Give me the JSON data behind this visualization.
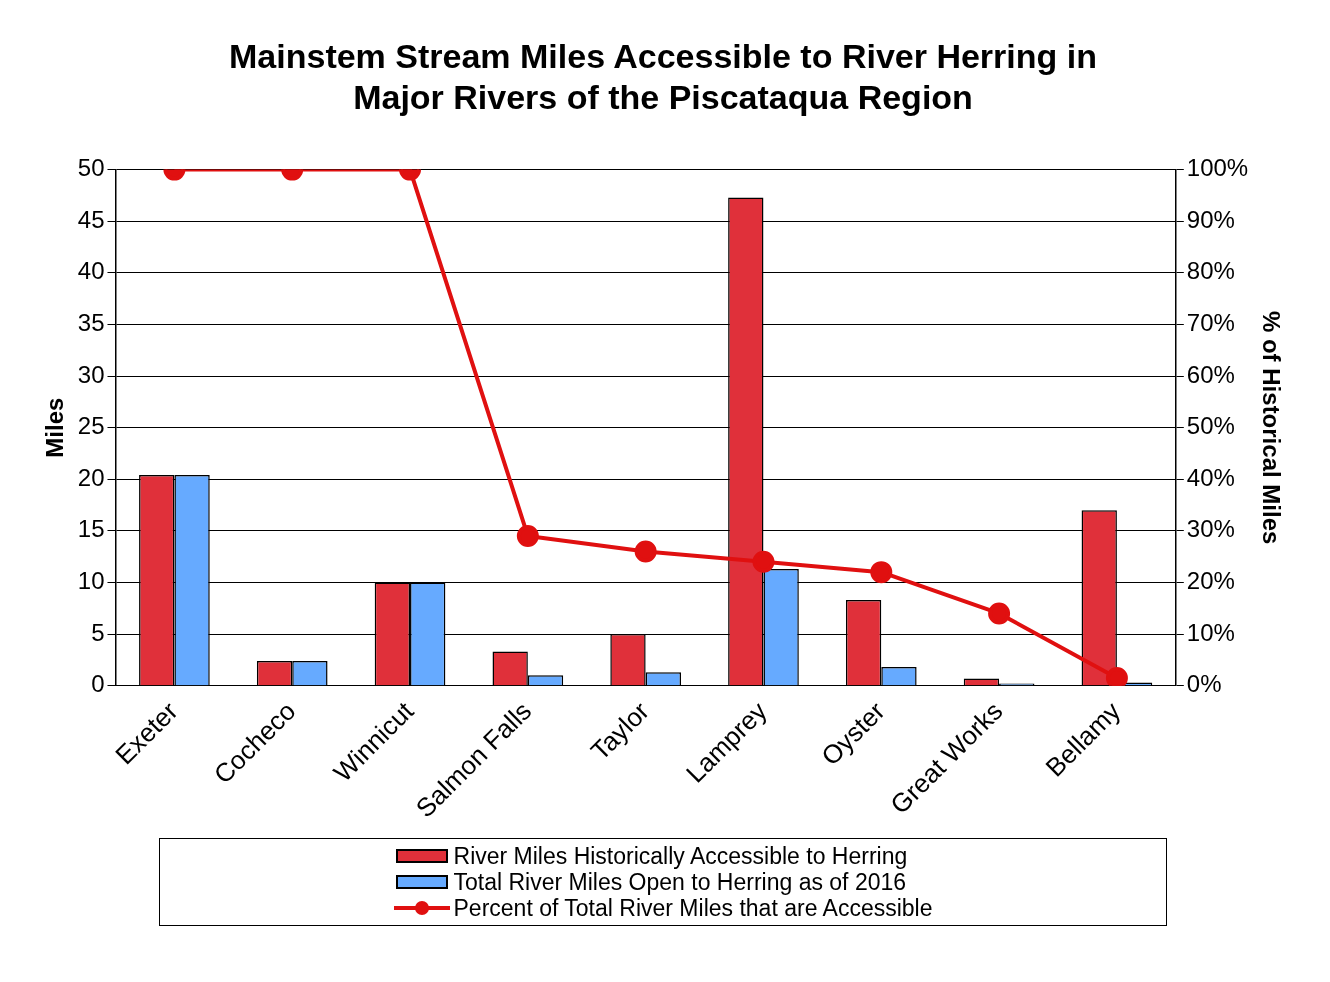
{
  "chart_data": {
    "type": "bar",
    "title": "Mainstem Stream Miles Accessible to River Herring in Major Rivers of the Piscataqua Region",
    "ylabel": "Miles",
    "y2label": "% of Historical Miles",
    "categories": [
      "Exeter",
      "Cocheco",
      "Winnicut",
      "Salmon Falls",
      "Taylor",
      "Lamprey",
      "Oyster",
      "Great Works",
      "Bellamy"
    ],
    "series": [
      {
        "name": "River Miles Historically Accessible to Herring",
        "color": "#e0303a",
        "values": [
          20.4,
          2.4,
          10,
          3.3,
          5,
          47.3,
          8.3,
          0.7,
          17
        ]
      },
      {
        "name": "Total River Miles Open to Herring as of 2016",
        "color": "#66aaff",
        "values": [
          20.4,
          2.4,
          10,
          1,
          1.3,
          11.3,
          1.8,
          0.2,
          0.3
        ]
      },
      {
        "name": "Percent of Total River Miles that are Accessible",
        "type": "line",
        "axis": "y2",
        "color": "#e01010",
        "marker": "circle",
        "values": [
          100,
          100,
          100,
          29,
          26,
          24,
          22,
          14,
          1.5
        ]
      }
    ],
    "ylim": [
      0,
      50
    ],
    "yticks": [
      0,
      5,
      10,
      15,
      20,
      25,
      30,
      35,
      40,
      45,
      50
    ],
    "y2lim": [
      0,
      100
    ],
    "y2ticks": [
      {
        "value": 0,
        "label": "0%"
      },
      {
        "value": 10,
        "label": "10%"
      },
      {
        "value": 20,
        "label": "20%"
      },
      {
        "value": 30,
        "label": "30%"
      },
      {
        "value": 40,
        "label": "40%"
      },
      {
        "value": 50,
        "label": "50%"
      },
      {
        "value": 60,
        "label": "60%"
      },
      {
        "value": 70,
        "label": "70%"
      },
      {
        "value": 80,
        "label": "80%"
      },
      {
        "value": 90,
        "label": "90%"
      },
      {
        "value": 100,
        "label": "100%"
      }
    ],
    "grid": "y",
    "legend": "bottom"
  }
}
